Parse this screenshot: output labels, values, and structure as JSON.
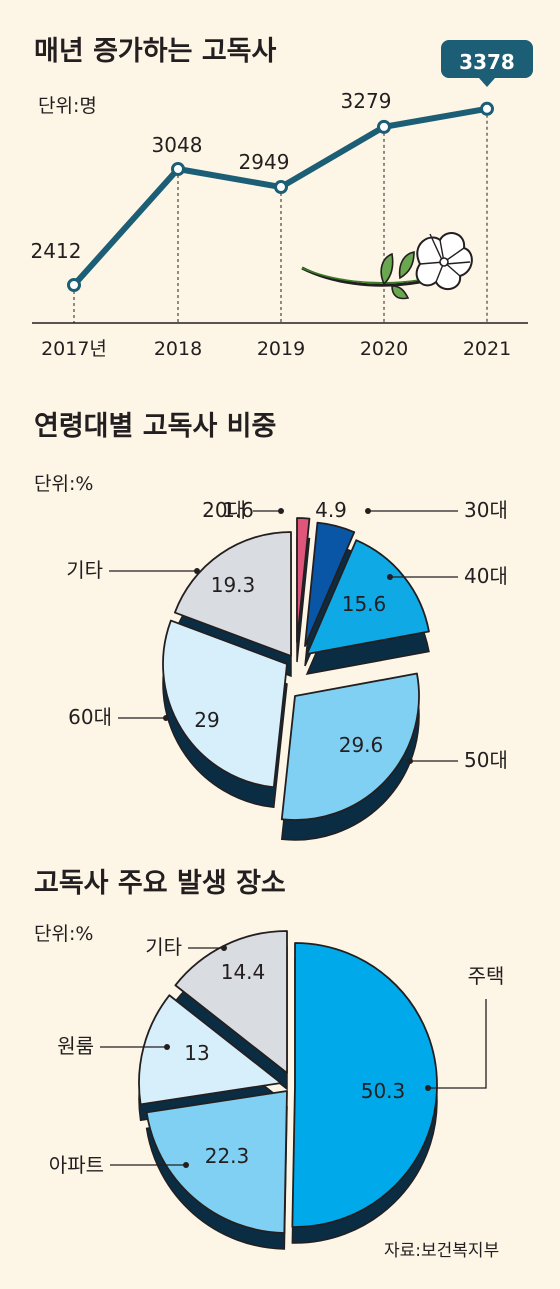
{
  "charts_meta": {
    "source": "자료:보건복지부"
  },
  "chart_data": [
    {
      "type": "line",
      "title": "매년 증가하는 고독사",
      "unit": "단위:명",
      "x": [
        "2017년",
        "2018",
        "2019",
        "2020",
        "2021"
      ],
      "values": [
        2412,
        3048,
        2949,
        3279,
        3378
      ],
      "value_labels": [
        "2412",
        "3048",
        "2949",
        "3279",
        "3378"
      ],
      "highlight_index": 4,
      "line_color": "#1b5e75",
      "grid": false
    },
    {
      "type": "pie",
      "title": "연령대별 고독사 비중",
      "unit": "단위:%",
      "slices": [
        {
          "label": "20대",
          "value": 1.6,
          "value_label": "1.6",
          "color": "#e0567a"
        },
        {
          "label": "30대",
          "value": 4.9,
          "value_label": "4.9",
          "color": "#0a56a6"
        },
        {
          "label": "40대",
          "value": 15.6,
          "value_label": "15.6",
          "color": "#0fa9e6"
        },
        {
          "label": "50대",
          "value": 29.6,
          "value_label": "29.6",
          "color": "#7fd0f2"
        },
        {
          "label": "60대",
          "value": 29,
          "value_label": "29",
          "color": "#d6effb"
        },
        {
          "label": "기타",
          "value": 19.3,
          "value_label": "19.3",
          "color": "#d9dde2"
        }
      ]
    },
    {
      "type": "pie",
      "title": "고독사 주요 발생 장소",
      "unit": "단위:%",
      "slices": [
        {
          "label": "주택",
          "value": 50.3,
          "value_label": "50.3",
          "color": "#00a9e9"
        },
        {
          "label": "아파트",
          "value": 22.3,
          "value_label": "22.3",
          "color": "#7fd0f2"
        },
        {
          "label": "원룸",
          "value": 13,
          "value_label": "13",
          "color": "#d6effb"
        },
        {
          "label": "기타",
          "value": 14.4,
          "value_label": "14.4",
          "color": "#d9dde2"
        }
      ]
    }
  ]
}
